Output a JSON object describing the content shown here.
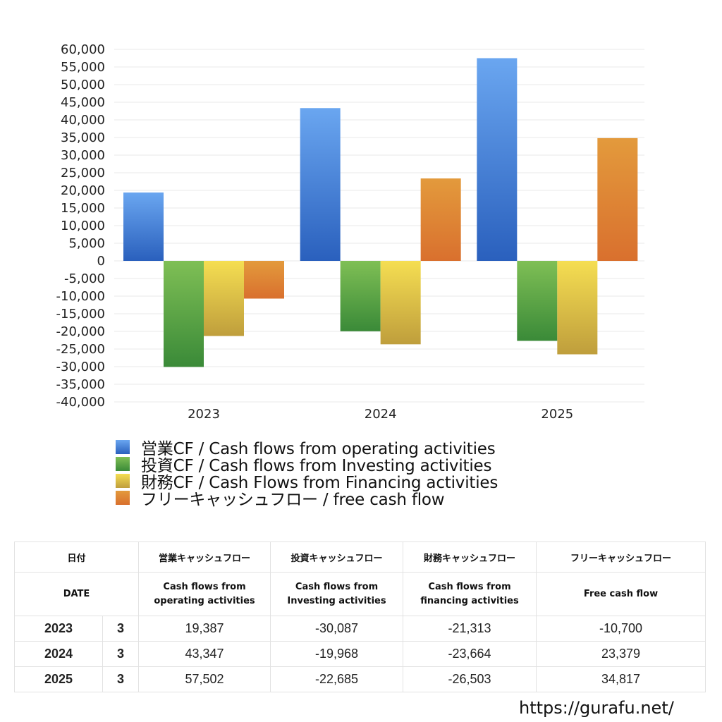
{
  "chart_data": {
    "type": "bar",
    "title": "",
    "xlabel": "",
    "ylabel": "",
    "categories": [
      "2023",
      "2024",
      "2025"
    ],
    "series": [
      {
        "name": "営業CF / Cash flows from operating activities",
        "values": [
          19387,
          43347,
          57502
        ],
        "color_top": "#6aa6f0",
        "color_bottom": "#2a60bd"
      },
      {
        "name": "投資CF / Cash flows from Investing activities",
        "values": [
          -30087,
          -19968,
          -22685
        ],
        "color_top": "#7fbf55",
        "color_bottom": "#3a8a38"
      },
      {
        "name": "財務CF / Cash Flows from Financing activities",
        "values": [
          -21313,
          -23664,
          -26503
        ],
        "color_top": "#f5de52",
        "color_bottom": "#bf9e3c"
      },
      {
        "name": "フリーキャッシュフロー / free cash flow",
        "values": [
          -10700,
          23379,
          34817
        ],
        "color_top": "#e39a3c",
        "color_bottom": "#d9702e"
      }
    ],
    "ylim": [
      -40000,
      60000
    ],
    "ytick_step": 5000,
    "ytick_labels": [
      "60,000",
      "55,000",
      "50,000",
      "45,000",
      "40,000",
      "35,000",
      "30,000",
      "25,000",
      "20,000",
      "15,000",
      "10,000",
      "5,000",
      "0",
      "-5,000",
      "-10,000",
      "-15,000",
      "-20,000",
      "-25,000",
      "-30,000",
      "-35,000",
      "-40,000"
    ],
    "grid": true,
    "legend_position": "bottom"
  },
  "legend": [
    {
      "label": "営業CF / Cash flows from operating activities",
      "color": "#4a86dc"
    },
    {
      "label": "投資CF / Cash flows from Investing activities",
      "color": "#5aa548"
    },
    {
      "label": "財務CF / Cash Flows from Financing activities",
      "color": "#e0c648"
    },
    {
      "label": "フリーキャッシュフロー / free cash flow",
      "color": "#de8436"
    }
  ],
  "table": {
    "header_jp": {
      "date": "日付",
      "operating": "営業キャッシュフロー",
      "investing": "投資キャッシュフロー",
      "financing": "財務キャッシュフロー",
      "free": "フリーキャッシュフロー"
    },
    "header_en": {
      "date": "DATE",
      "operating_1": "Cash flows from",
      "operating_2": "operating activities",
      "investing_1": "Cash flows from",
      "investing_2": "Investing activities",
      "financing_1": "Cash flows from",
      "financing_2": "financing activities",
      "free": "Free cash flow"
    },
    "rows": [
      {
        "year": "2023",
        "month": "3",
        "operating": "19,387",
        "investing": "-30,087",
        "financing": "-21,313",
        "free": "-10,700"
      },
      {
        "year": "2024",
        "month": "3",
        "operating": "43,347",
        "investing": "-19,968",
        "financing": "-23,664",
        "free": "23,379"
      },
      {
        "year": "2025",
        "month": "3",
        "operating": "57,502",
        "investing": "-22,685",
        "financing": "-26,503",
        "free": "34,817"
      }
    ]
  },
  "footer": {
    "url": "https://gurafu.net/"
  },
  "colors": {
    "negative": "#d64a36",
    "grid": "#e8e8e8"
  }
}
